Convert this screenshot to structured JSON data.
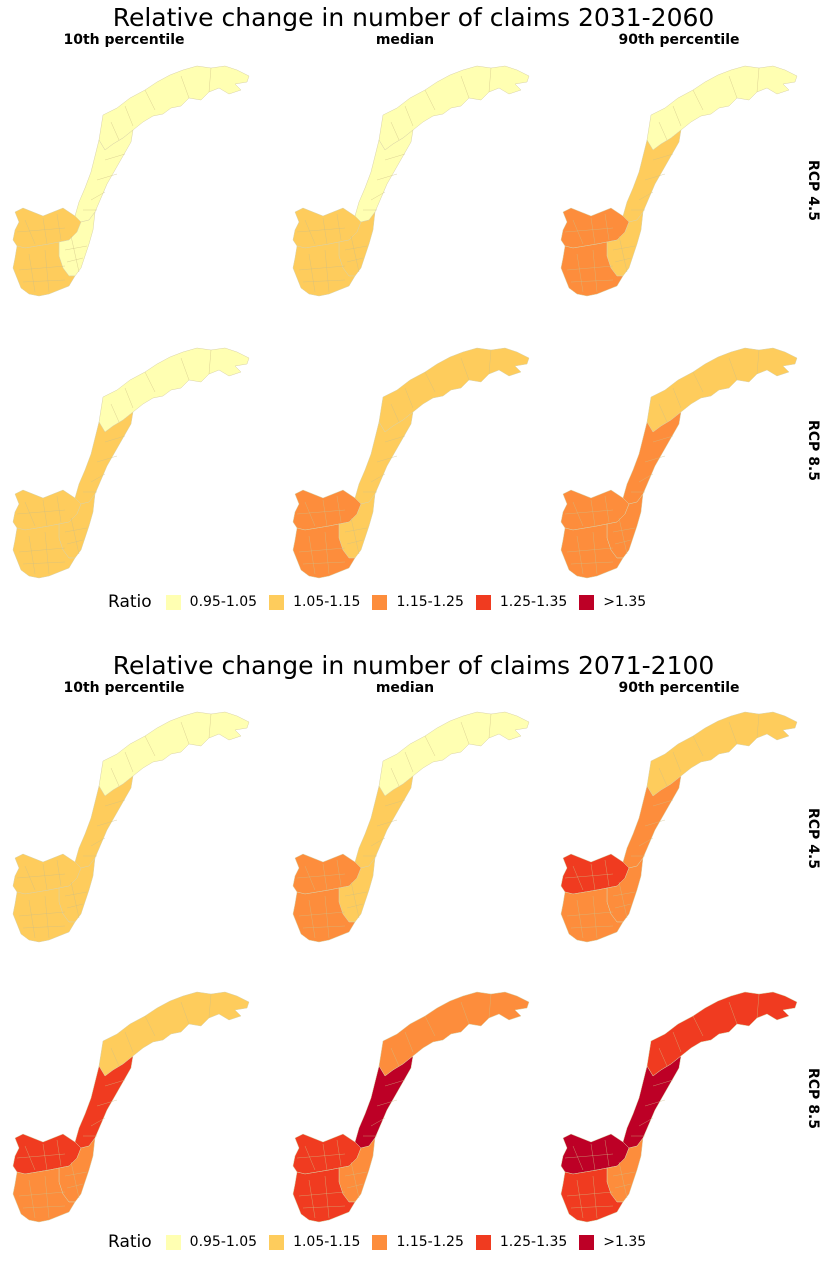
{
  "palette": {
    "c1": "#ffffb2",
    "c2": "#fecc5c",
    "c3": "#fd8d3c",
    "c4": "#f03b20",
    "c5": "#bd0026"
  },
  "legend": {
    "title": "Ratio",
    "items": [
      {
        "label": "0.95-1.05",
        "color": "#ffffb2"
      },
      {
        "label": "1.05-1.15",
        "color": "#fecc5c"
      },
      {
        "label": "1.15-1.25",
        "color": "#fd8d3c"
      },
      {
        "label": "1.25-1.35",
        "color": "#f03b20"
      },
      {
        "label": ">1.35",
        "color": "#bd0026"
      }
    ]
  },
  "figures": [
    {
      "title": "Relative change in number of claims 2031-2060",
      "columns": [
        "10th percentile",
        "median",
        "90th percentile"
      ],
      "rows": [
        "RCP 4.5",
        "RCP 8.5"
      ],
      "panels": [
        {
          "row": "RCP 4.5",
          "col": "10th percentile",
          "regions": {
            "north": 1,
            "mid": 1,
            "west": 2,
            "east": 1,
            "south": 2
          }
        },
        {
          "row": "RCP 4.5",
          "col": "median",
          "regions": {
            "north": 1,
            "mid": 1,
            "west": 2,
            "east": 2,
            "south": 2
          }
        },
        {
          "row": "RCP 4.5",
          "col": "90th percentile",
          "regions": {
            "north": 1,
            "mid": 2,
            "west": 3,
            "east": 2,
            "south": 3
          }
        },
        {
          "row": "RCP 8.5",
          "col": "10th percentile",
          "regions": {
            "north": 1,
            "mid": 2,
            "west": 2,
            "east": 2,
            "south": 2
          }
        },
        {
          "row": "RCP 8.5",
          "col": "median",
          "regions": {
            "north": 2,
            "mid": 2,
            "west": 3,
            "east": 2,
            "south": 3
          }
        },
        {
          "row": "RCP 8.5",
          "col": "90th percentile",
          "regions": {
            "north": 2,
            "mid": 3,
            "west": 3,
            "east": 3,
            "south": 3
          }
        }
      ]
    },
    {
      "title": "Relative change in number of claims 2071-2100",
      "columns": [
        "10th percentile",
        "median",
        "90th percentile"
      ],
      "rows": [
        "RCP 4.5",
        "RCP 8.5"
      ],
      "panels": [
        {
          "row": "RCP 4.5",
          "col": "10th percentile",
          "regions": {
            "north": 1,
            "mid": 2,
            "west": 2,
            "east": 2,
            "south": 2
          }
        },
        {
          "row": "RCP 4.5",
          "col": "median",
          "regions": {
            "north": 1,
            "mid": 2,
            "west": 3,
            "east": 2,
            "south": 3
          }
        },
        {
          "row": "RCP 4.5",
          "col": "90th percentile",
          "regions": {
            "north": 2,
            "mid": 3,
            "west": 4,
            "east": 3,
            "south": 3
          }
        },
        {
          "row": "RCP 8.5",
          "col": "10th percentile",
          "regions": {
            "north": 2,
            "mid": 4,
            "west": 4,
            "east": 3,
            "south": 3
          }
        },
        {
          "row": "RCP 8.5",
          "col": "median",
          "regions": {
            "north": 3,
            "mid": 5,
            "west": 4,
            "east": 3,
            "south": 4
          }
        },
        {
          "row": "RCP 8.5",
          "col": "90th percentile",
          "regions": {
            "north": 4,
            "mid": 5,
            "west": 5,
            "east": 3,
            "south": 4
          }
        }
      ]
    }
  ]
}
